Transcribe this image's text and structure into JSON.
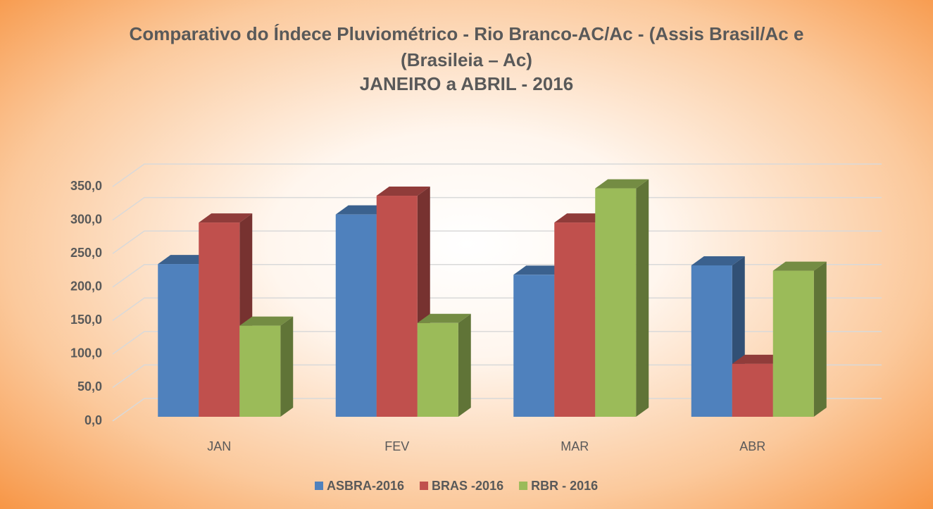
{
  "chart_data": {
    "type": "bar3d",
    "title": "Comparativo do Índece Pluviométrico - Rio Branco-AC/Ac - (Assis Brasil/Ac e (Brasileia – Ac)",
    "subtitle": "JANEIRO a ABRIL - 2016",
    "categories": [
      "JAN",
      "FEV",
      "MAR",
      "ABR"
    ],
    "series": [
      {
        "name": "ASBRA-2016",
        "color": "#4f81bd",
        "values": [
          228,
          302,
          212,
          226
        ]
      },
      {
        "name": "BRAS -2016",
        "color": "#c0504d",
        "values": [
          290,
          330,
          290,
          79
        ]
      },
      {
        "name": "RBR - 2016",
        "color": "#9bbb59",
        "values": [
          136,
          140,
          341,
          218
        ]
      }
    ],
    "ylim": [
      0,
      350
    ],
    "yticks": [
      {
        "value": 0,
        "label": "0,0"
      },
      {
        "value": 50,
        "label": "50,0"
      },
      {
        "value": 100,
        "label": "100,0"
      },
      {
        "value": 150,
        "label": "150,0"
      },
      {
        "value": 200,
        "label": "200,0"
      },
      {
        "value": 250,
        "label": "250,0"
      },
      {
        "value": 300,
        "label": "300,0"
      },
      {
        "value": 350,
        "label": "350,0"
      }
    ],
    "grid": true,
    "legend": "bottom"
  }
}
